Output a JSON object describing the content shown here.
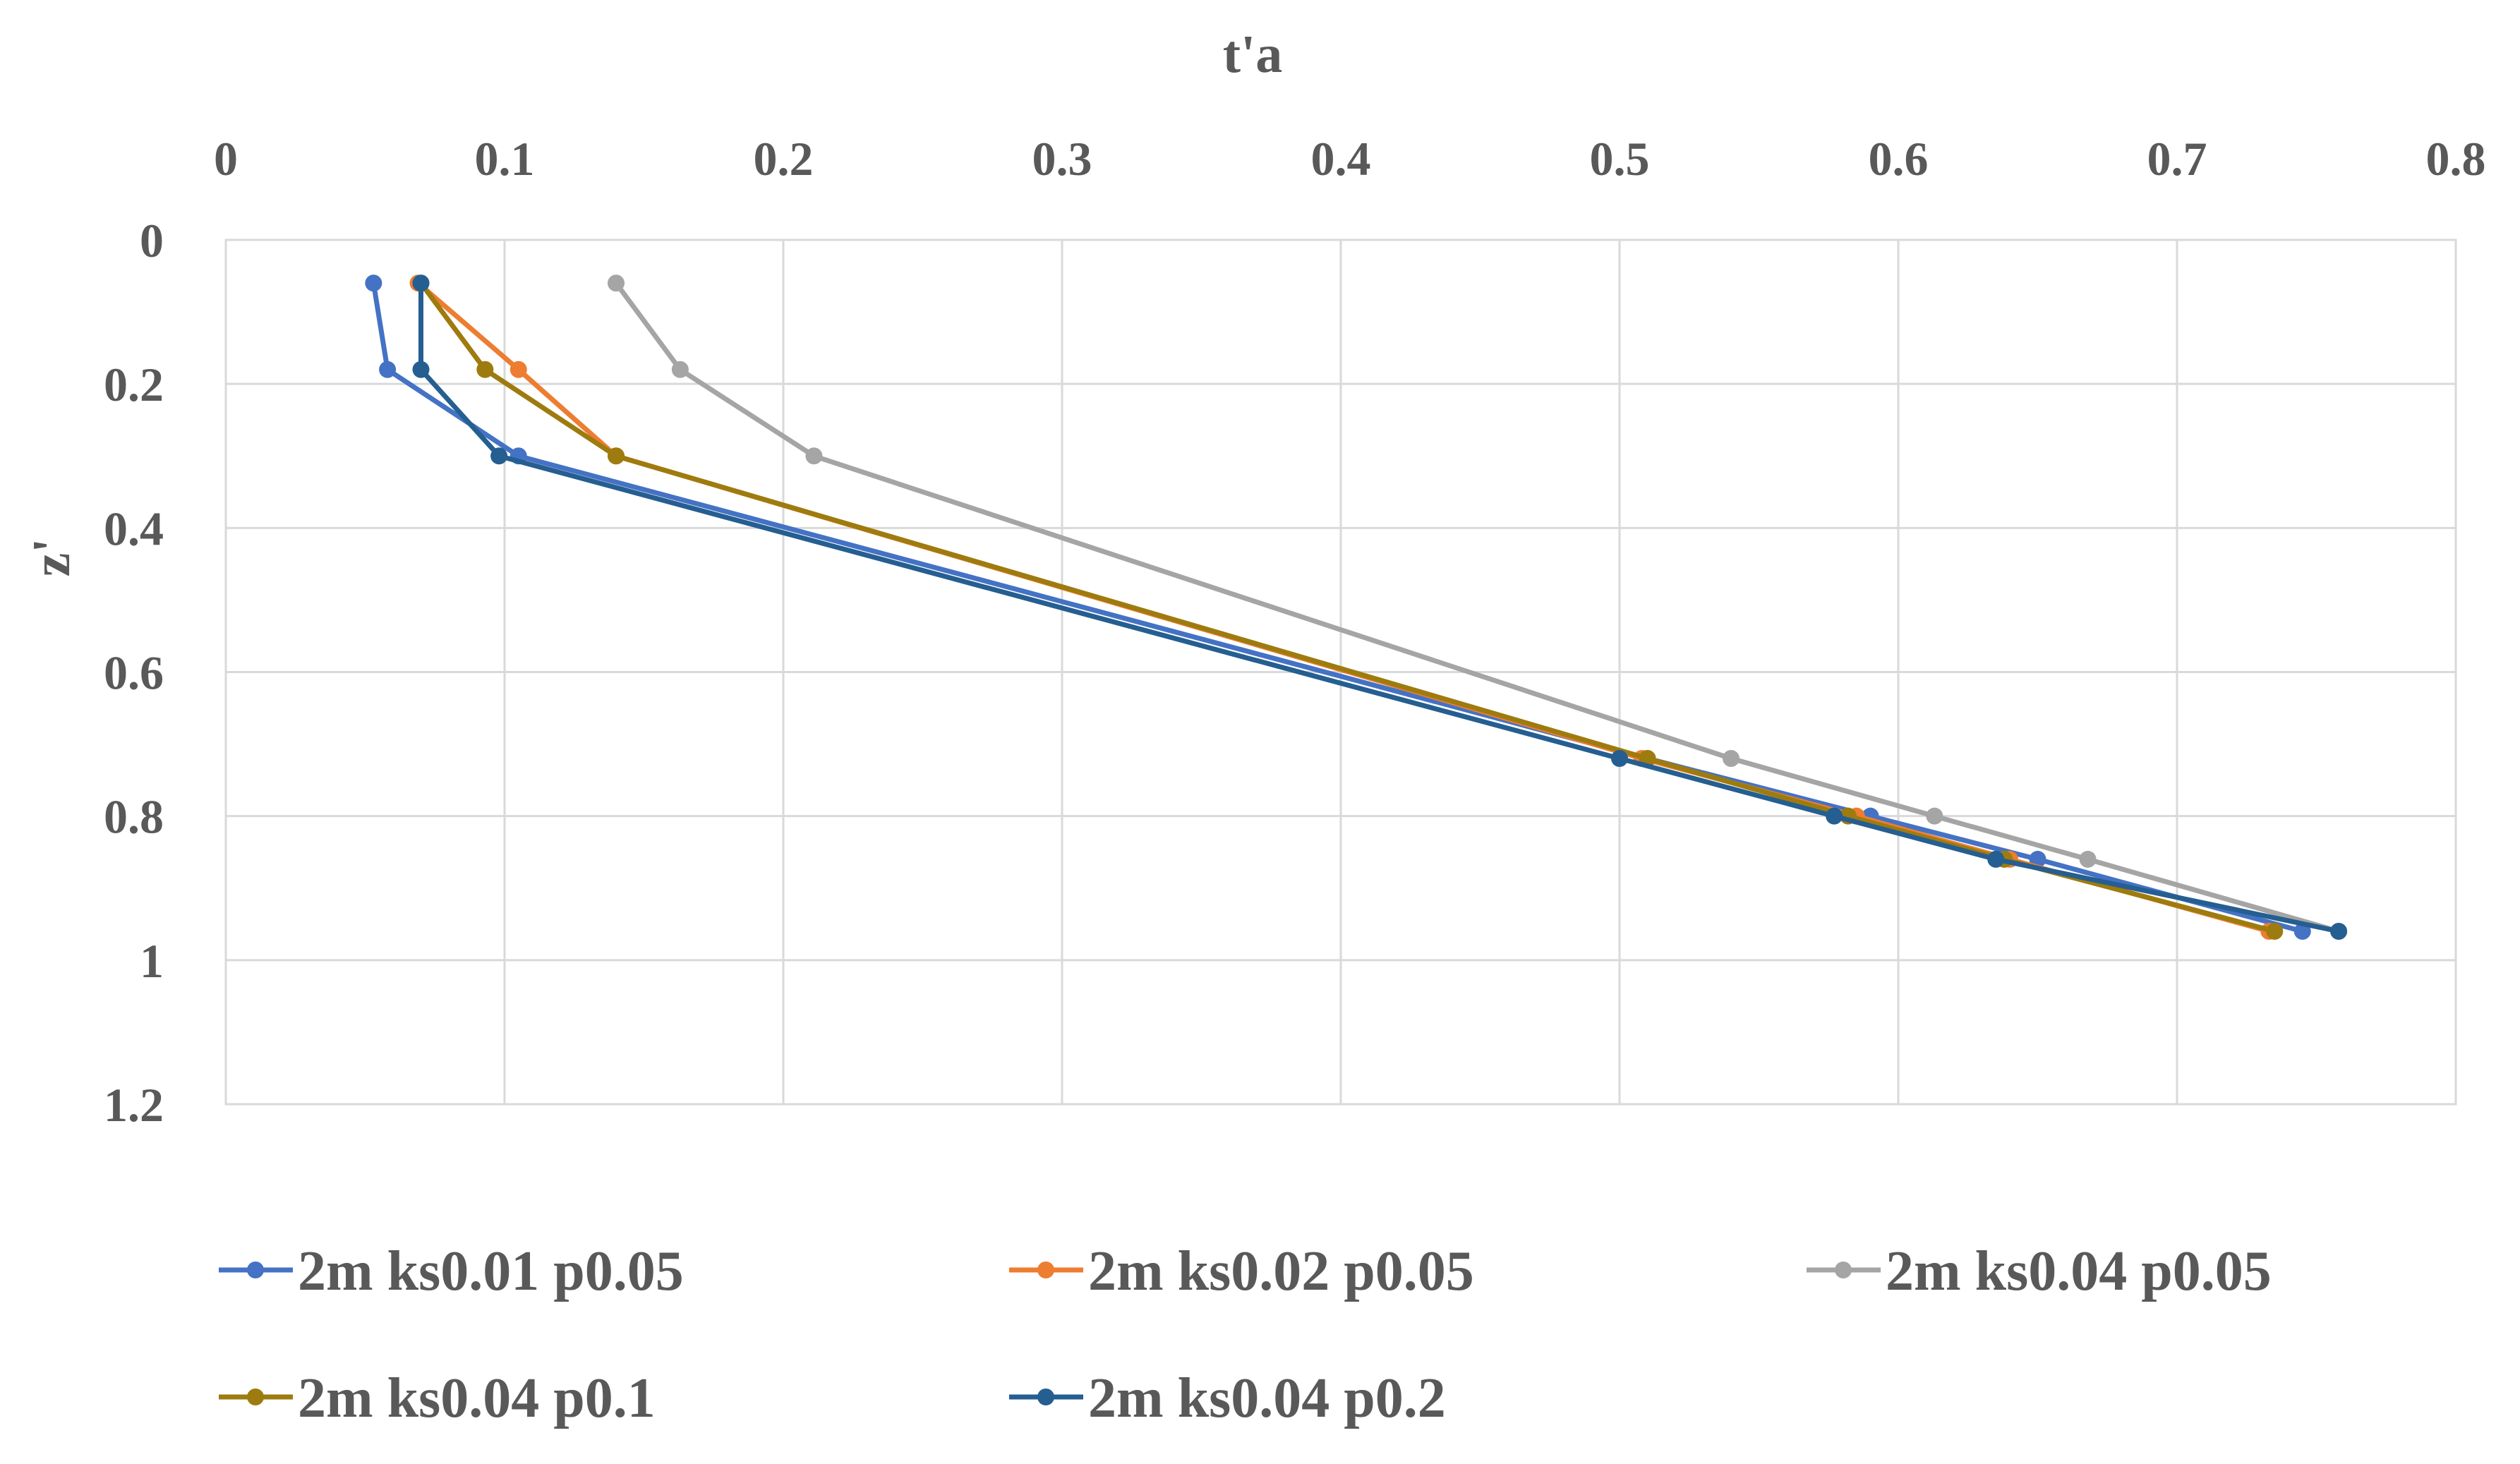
{
  "chart_data": {
    "type": "line",
    "title": "",
    "xlabel": "t'a",
    "ylabel": "z'",
    "x_axis_position": "top",
    "y_axis_reversed": true,
    "xlim": [
      0,
      0.8
    ],
    "ylim": [
      0,
      1.2
    ],
    "x_ticks": [
      "0",
      "0.1",
      "0.2",
      "0.3",
      "0.4",
      "0.5",
      "0.6",
      "0.7",
      "0.8"
    ],
    "y_ticks": [
      "0",
      "0.2",
      "0.4",
      "0.6",
      "0.8",
      "1",
      "1.2"
    ],
    "grid": true,
    "legend_position": "bottom",
    "series": [
      {
        "name": "2m ks0.01 p0.05",
        "color": "#4472C4",
        "points": [
          [
            0.053,
            0.06
          ],
          [
            0.058,
            0.18
          ],
          [
            0.105,
            0.3
          ],
          [
            0.51,
            0.72
          ],
          [
            0.59,
            0.8
          ],
          [
            0.65,
            0.86
          ],
          [
            0.745,
            0.96
          ]
        ]
      },
      {
        "name": "2m ks0.02 p0.05",
        "color": "#ED7D31",
        "points": [
          [
            0.069,
            0.06
          ],
          [
            0.105,
            0.18
          ],
          [
            0.14,
            0.3
          ],
          [
            0.508,
            0.72
          ],
          [
            0.585,
            0.8
          ],
          [
            0.64,
            0.86
          ],
          [
            0.733,
            0.96
          ]
        ]
      },
      {
        "name": "2m ks0.04 p0.05",
        "color": "#A5A5A5",
        "points": [
          [
            0.14,
            0.06
          ],
          [
            0.163,
            0.18
          ],
          [
            0.211,
            0.3
          ],
          [
            0.54,
            0.72
          ],
          [
            0.613,
            0.8
          ],
          [
            0.668,
            0.86
          ],
          [
            0.758,
            0.96
          ]
        ]
      },
      {
        "name": "2m ks0.04 p0.1",
        "color": "#9E7B0E",
        "points": [
          [
            0.07,
            0.06
          ],
          [
            0.093,
            0.18
          ],
          [
            0.14,
            0.3
          ],
          [
            0.51,
            0.72
          ],
          [
            0.582,
            0.8
          ],
          [
            0.638,
            0.86
          ],
          [
            0.735,
            0.96
          ]
        ]
      },
      {
        "name": "2m ks0.04 p0.2",
        "color": "#255E91",
        "points": [
          [
            0.07,
            0.06
          ],
          [
            0.07,
            0.18
          ],
          [
            0.098,
            0.3
          ],
          [
            0.5,
            0.72
          ],
          [
            0.577,
            0.8
          ],
          [
            0.635,
            0.86
          ],
          [
            0.758,
            0.96
          ]
        ]
      }
    ]
  }
}
